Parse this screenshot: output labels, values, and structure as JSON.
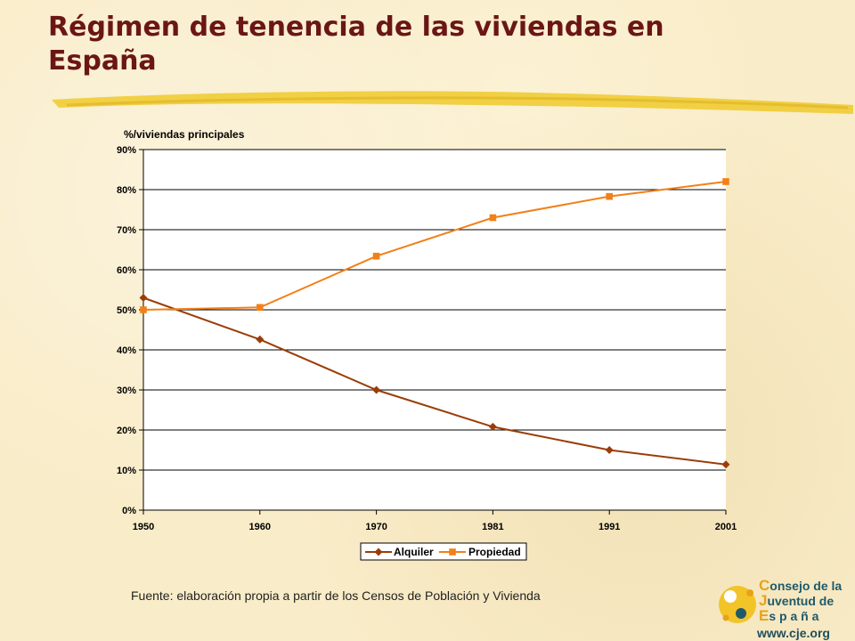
{
  "slide": {
    "title": "Régimen de tenencia de las viviendas en España",
    "source": "Fuente: elaboración propia a partir de los Censos de Población y Vivienda"
  },
  "logo": {
    "caps": [
      "C",
      "J",
      "E"
    ],
    "rests": [
      "onsejo de la",
      "uventud de",
      "s p a ñ a"
    ],
    "url": "www.cje.org"
  },
  "colors": {
    "title": "#6b1616",
    "brush": "#f0cd3c",
    "alquiler": "#9b3d09",
    "propiedad": "#f28018",
    "plot_bg": "#ffffff"
  },
  "chart_data": {
    "type": "line",
    "ylabel": "%/viviendas principales",
    "xlabel": "",
    "categories": [
      "1950",
      "1960",
      "1970",
      "1981",
      "1991",
      "2001"
    ],
    "ylim": [
      0,
      90
    ],
    "yticks": [
      "0%",
      "10%",
      "20%",
      "30%",
      "40%",
      "50%",
      "60%",
      "70%",
      "80%",
      "90%"
    ],
    "grid": true,
    "legend_position": "bottom",
    "series": [
      {
        "name": "Alquiler",
        "marker": "diamond",
        "values": [
          53,
          42.6,
          30,
          20.8,
          15,
          11.4
        ]
      },
      {
        "name": "Propiedad",
        "marker": "square",
        "values": [
          50,
          50.6,
          63.4,
          73,
          78.3,
          82
        ]
      }
    ]
  }
}
